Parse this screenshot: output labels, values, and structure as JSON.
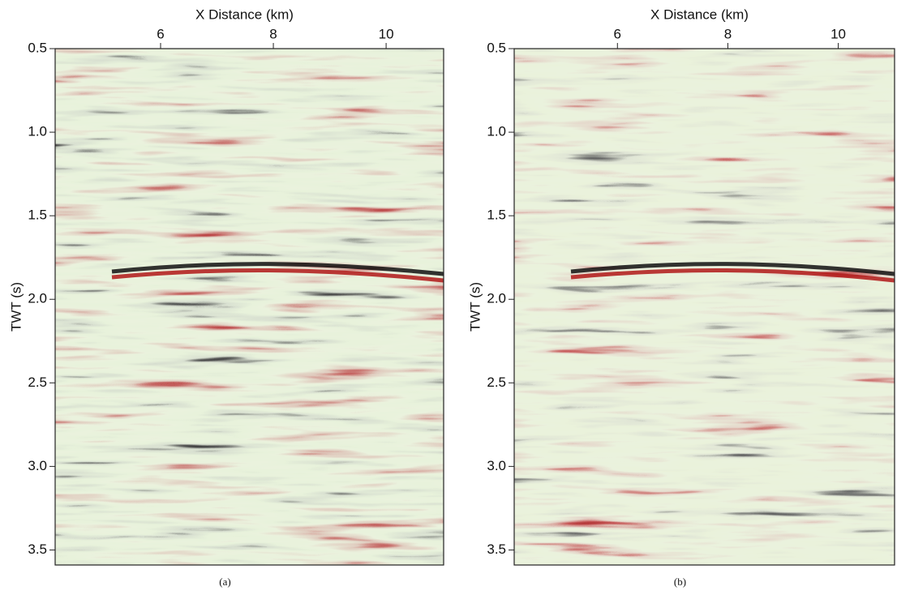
{
  "chart_data": [
    {
      "type": "image",
      "x_label": "X Distance (km)",
      "y_label": "TWT (s)",
      "caption": "(a)",
      "xlim": [
        4.13,
        11.02
      ],
      "xticks": [
        6,
        8,
        10
      ],
      "ylim": [
        0.5,
        3.59
      ],
      "yticks": [
        0.5,
        {
          "value": 1.0,
          "label": "1.0"
        },
        1.5,
        {
          "value": 2.0,
          "label": "2.0"
        },
        2.5,
        {
          "value": 3.0,
          "label": "3.0"
        },
        3.5
      ],
      "y_inverted": true
    },
    {
      "type": "image",
      "x_label": "X Distance (km)",
      "y_label": "TWT (s)",
      "caption": "(b)",
      "xlim": [
        4.13,
        11.02
      ],
      "xticks": [
        6,
        8,
        10
      ],
      "ylim": [
        0.5,
        3.59
      ],
      "yticks": [
        0.5,
        {
          "value": 1.0,
          "label": "1.0"
        },
        1.5,
        {
          "value": 2.0,
          "label": "2.0"
        },
        2.5,
        {
          "value": 3.0,
          "label": "3.0"
        },
        3.5
      ],
      "y_inverted": true
    }
  ]
}
